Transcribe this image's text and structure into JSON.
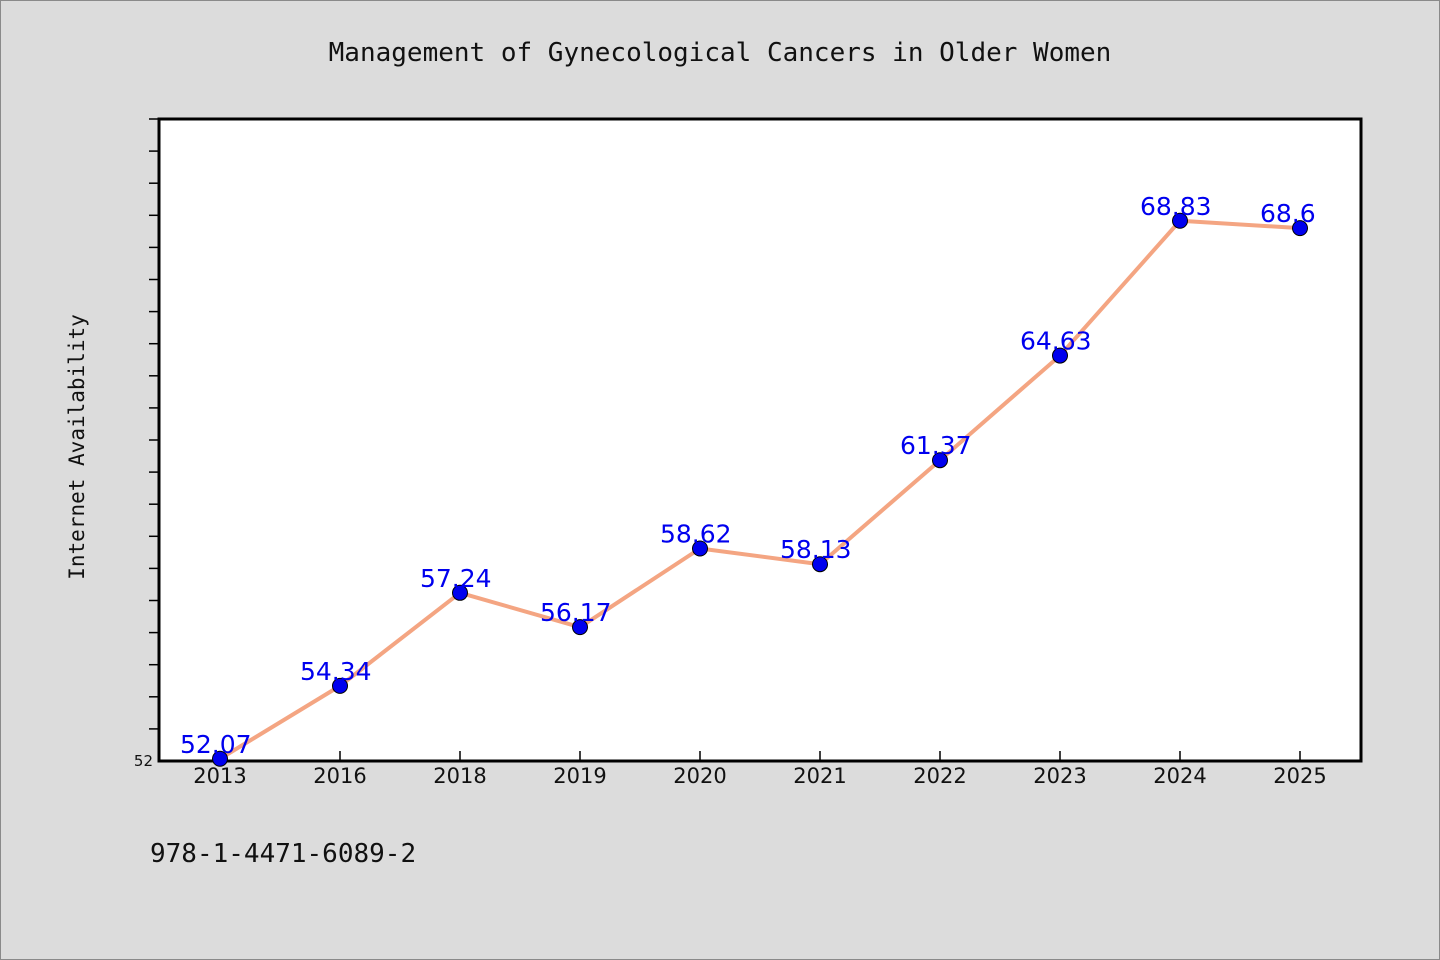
{
  "chart_data": {
    "type": "line",
    "title": "Management of Gynecological Cancers in Older Women",
    "xlabel": "",
    "ylabel": "Internet Availability",
    "categories": [
      "2013",
      "2016",
      "2018",
      "2019",
      "2020",
      "2021",
      "2022",
      "2023",
      "2024",
      "2025"
    ],
    "series": [
      {
        "values": [
          52.07,
          54.34,
          57.24,
          56.17,
          58.62,
          58.13,
          61.37,
          64.63,
          68.83,
          68.6
        ],
        "labels": [
          "52.07",
          "54.34",
          "57.24",
          "56.17",
          "58.62",
          "58.13",
          "61.37",
          "64.63",
          "68.83",
          "68.6"
        ]
      }
    ],
    "ylim": [
      52,
      72
    ],
    "yticklabels": [
      "52"
    ],
    "grid": false,
    "colors": {
      "line": "#f4a582",
      "marker": "#0000ee",
      "data_label": "#0000ee",
      "plot_background": "#ffffff",
      "page_background": "#dcdcdc"
    }
  },
  "footer": {
    "isbn": "978-1-4471-6089-2"
  }
}
